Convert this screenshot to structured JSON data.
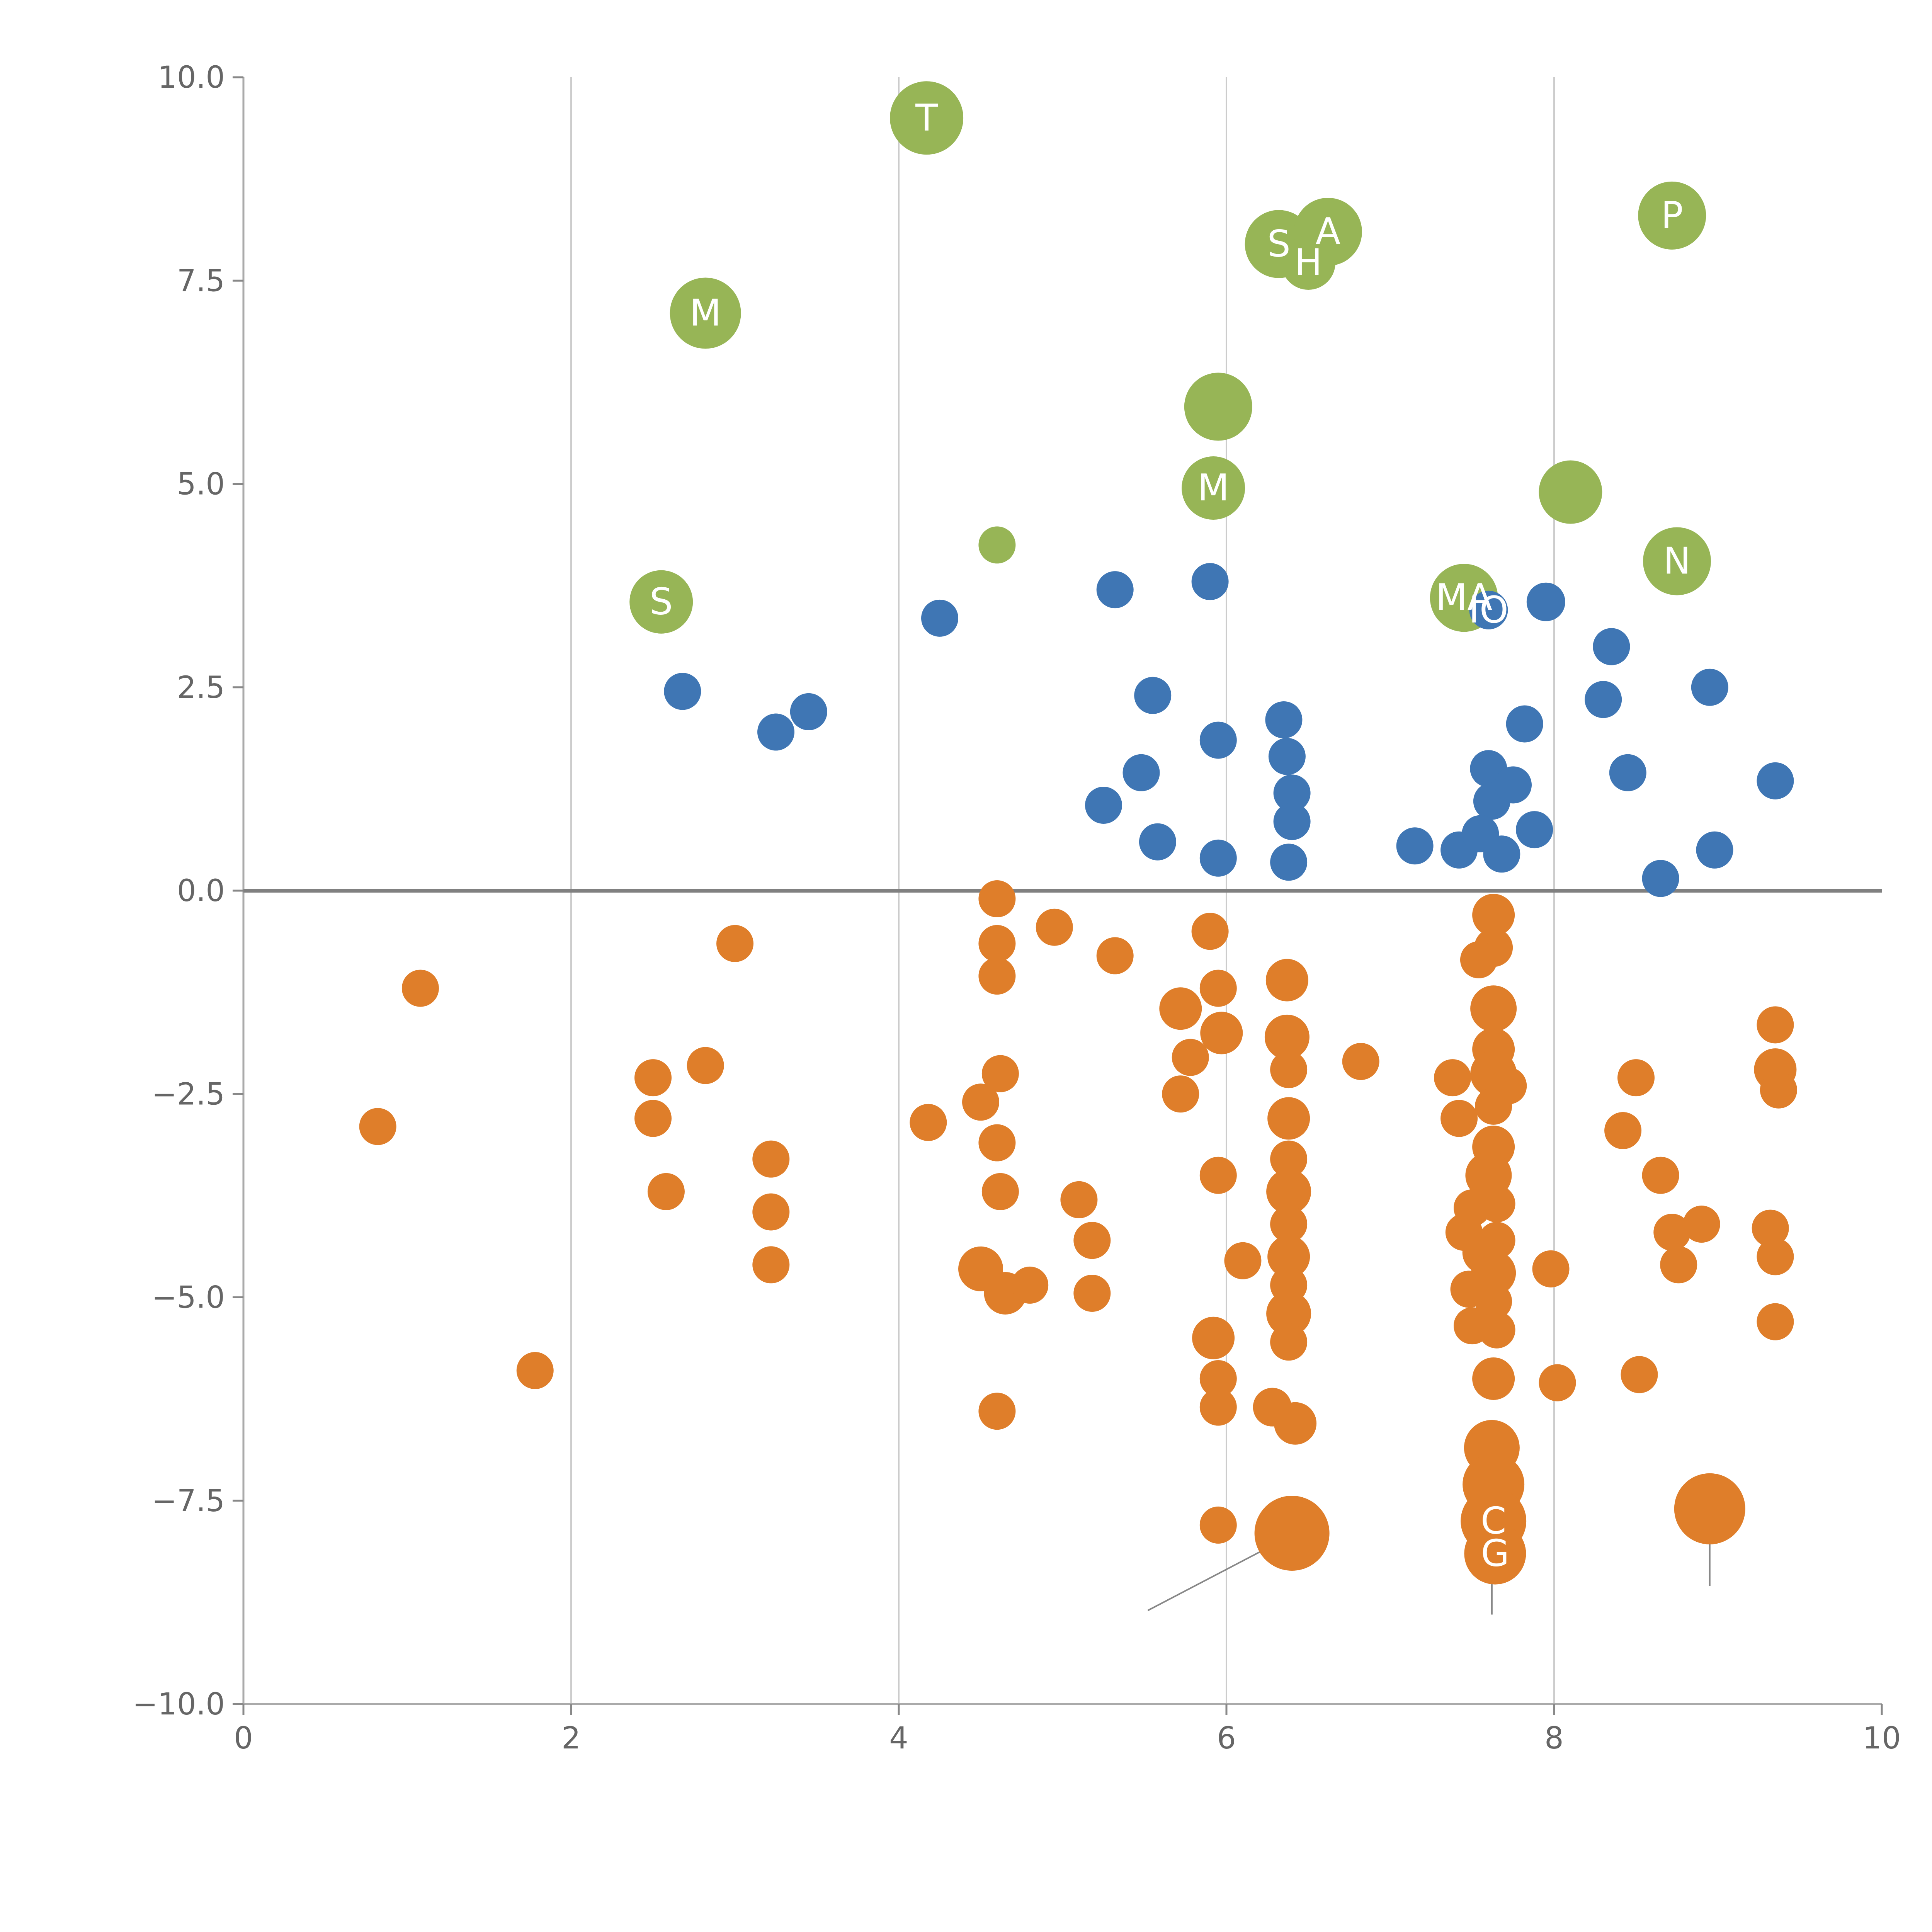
{
  "page": {
    "background": "#ffffff"
  },
  "chart_data": {
    "type": "scatter",
    "title": "",
    "xlabel": "",
    "ylabel": "",
    "xlim": [
      0,
      10
    ],
    "ylim": [
      -10,
      10
    ],
    "grid": {
      "vertical_at": [
        2,
        4,
        6,
        8
      ],
      "color": "#cccccc",
      "horizontal": false
    },
    "zero_line": {
      "y": 0,
      "color": "#808080",
      "width": 10
    },
    "axis": {
      "spine_color": "#aaaaaa",
      "tick_color": "#888888",
      "label_color": "#666666"
    },
    "xticks": [
      {
        "v": 0,
        "label": "0"
      },
      {
        "v": 2,
        "label": "2"
      },
      {
        "v": 4,
        "label": "4"
      },
      {
        "v": 6,
        "label": "6"
      },
      {
        "v": 8,
        "label": "8"
      },
      {
        "v": 10,
        "label": "10"
      }
    ],
    "yticks": [
      {
        "v": 10,
        "label": "10.0"
      },
      {
        "v": 7.5,
        "label": "7.5"
      },
      {
        "v": 5,
        "label": "5.0"
      },
      {
        "v": 2.5,
        "label": "2.5"
      },
      {
        "v": 0,
        "label": "0.0"
      },
      {
        "v": -2.5,
        "label": "−2.5"
      },
      {
        "v": -5,
        "label": "−5.0"
      },
      {
        "v": -7.5,
        "label": "−7.5"
      },
      {
        "v": -10,
        "label": "−10.0"
      }
    ],
    "point_label_color": "#ffffff",
    "series": [
      {
        "name": "green",
        "color": "#97b556",
        "points": [
          [
            4.17,
            9.5,
            95,
            "T"
          ],
          [
            2.82,
            7.1,
            92,
            "M"
          ],
          [
            6.32,
            7.95,
            88,
            "S"
          ],
          [
            6.62,
            8.1,
            88,
            "A"
          ],
          [
            6.5,
            7.72,
            70,
            "H"
          ],
          [
            8.72,
            8.3,
            88,
            "P"
          ],
          [
            5.95,
            5.95,
            88,
            ""
          ],
          [
            5.92,
            4.95,
            82,
            "M"
          ],
          [
            8.1,
            4.9,
            82,
            ""
          ],
          [
            7.45,
            3.6,
            88,
            "MA"
          ],
          [
            8.75,
            4.05,
            88,
            "N"
          ],
          [
            2.55,
            3.55,
            82,
            "S"
          ],
          [
            4.6,
            4.25,
            48,
            ""
          ]
        ]
      },
      {
        "name": "blue",
        "color": "#3f76b4",
        "points": [
          [
            2.68,
            2.45,
            48,
            ""
          ],
          [
            3.25,
            1.95,
            48,
            ""
          ],
          [
            3.45,
            2.2,
            48,
            ""
          ],
          [
            4.25,
            3.35,
            48,
            ""
          ],
          [
            5.32,
            3.7,
            48,
            ""
          ],
          [
            5.55,
            2.4,
            48,
            ""
          ],
          [
            5.9,
            3.8,
            48,
            ""
          ],
          [
            5.95,
            1.85,
            48,
            ""
          ],
          [
            5.25,
            1.05,
            48,
            ""
          ],
          [
            5.48,
            1.45,
            48,
            ""
          ],
          [
            5.58,
            0.6,
            48,
            ""
          ],
          [
            5.95,
            0.4,
            48,
            ""
          ],
          [
            6.35,
            2.1,
            48,
            ""
          ],
          [
            6.37,
            1.65,
            48,
            ""
          ],
          [
            6.4,
            1.2,
            48,
            ""
          ],
          [
            6.4,
            0.85,
            48,
            ""
          ],
          [
            6.38,
            0.35,
            48,
            ""
          ],
          [
            7.15,
            0.55,
            48,
            ""
          ],
          [
            7.42,
            0.5,
            48,
            ""
          ],
          [
            7.6,
            3.45,
            50,
            "IO"
          ],
          [
            7.95,
            3.55,
            50,
            ""
          ],
          [
            7.6,
            1.5,
            48,
            ""
          ],
          [
            7.62,
            1.1,
            48,
            ""
          ],
          [
            7.55,
            0.7,
            48,
            ""
          ],
          [
            7.68,
            0.45,
            48,
            ""
          ],
          [
            7.75,
            1.3,
            48,
            ""
          ],
          [
            7.82,
            2.05,
            48,
            ""
          ],
          [
            7.88,
            0.75,
            48,
            ""
          ],
          [
            8.35,
            3.0,
            48,
            ""
          ],
          [
            8.3,
            2.35,
            48,
            ""
          ],
          [
            8.45,
            1.45,
            48,
            ""
          ],
          [
            8.65,
            0.15,
            48,
            ""
          ],
          [
            8.95,
            2.5,
            48,
            ""
          ],
          [
            8.98,
            0.5,
            48,
            ""
          ],
          [
            9.35,
            1.35,
            48,
            ""
          ]
        ]
      },
      {
        "name": "orange",
        "color": "#df7e2a",
        "points": [
          [
            1.08,
            -1.2,
            48,
            ""
          ],
          [
            0.82,
            -2.9,
            48,
            ""
          ],
          [
            1.78,
            -5.9,
            48,
            ""
          ],
          [
            2.5,
            -2.3,
            48,
            ""
          ],
          [
            2.5,
            -2.8,
            48,
            ""
          ],
          [
            2.58,
            -3.7,
            48,
            ""
          ],
          [
            2.82,
            -2.15,
            48,
            ""
          ],
          [
            3.0,
            -0.65,
            48,
            ""
          ],
          [
            3.22,
            -3.3,
            48,
            ""
          ],
          [
            3.22,
            -3.95,
            48,
            ""
          ],
          [
            3.22,
            -4.6,
            48,
            ""
          ],
          [
            4.18,
            -2.85,
            48,
            ""
          ],
          [
            4.5,
            -2.6,
            48,
            ""
          ],
          [
            4.62,
            -2.25,
            48,
            ""
          ],
          [
            4.6,
            -3.1,
            48,
            ""
          ],
          [
            4.62,
            -3.7,
            48,
            ""
          ],
          [
            4.5,
            -4.65,
            58,
            ""
          ],
          [
            4.65,
            -4.95,
            55,
            ""
          ],
          [
            4.8,
            -4.85,
            48,
            ""
          ],
          [
            4.6,
            -6.4,
            48,
            ""
          ],
          [
            4.6,
            -0.1,
            48,
            ""
          ],
          [
            4.6,
            -0.65,
            48,
            ""
          ],
          [
            4.6,
            -1.05,
            48,
            ""
          ],
          [
            4.95,
            -0.45,
            48,
            ""
          ],
          [
            5.1,
            -3.8,
            48,
            ""
          ],
          [
            5.18,
            -4.3,
            48,
            ""
          ],
          [
            5.18,
            -4.95,
            48,
            ""
          ],
          [
            5.32,
            -0.8,
            48,
            ""
          ],
          [
            5.72,
            -1.45,
            55,
            ""
          ],
          [
            5.78,
            -2.05,
            48,
            ""
          ],
          [
            5.72,
            -2.5,
            48,
            ""
          ],
          [
            5.9,
            -0.5,
            48,
            ""
          ],
          [
            5.95,
            -1.2,
            48,
            ""
          ],
          [
            5.97,
            -1.75,
            55,
            ""
          ],
          [
            5.95,
            -3.5,
            48,
            ""
          ],
          [
            6.1,
            -4.55,
            48,
            ""
          ],
          [
            5.92,
            -5.5,
            55,
            ""
          ],
          [
            5.95,
            -6.0,
            48,
            ""
          ],
          [
            5.95,
            -6.35,
            48,
            ""
          ],
          [
            5.95,
            -7.8,
            48,
            ""
          ],
          [
            6.37,
            -1.1,
            55,
            ""
          ],
          [
            6.37,
            -1.8,
            58,
            ""
          ],
          [
            6.38,
            -2.2,
            48,
            ""
          ],
          [
            6.38,
            -2.8,
            55,
            ""
          ],
          [
            6.38,
            -3.3,
            48,
            ""
          ],
          [
            6.38,
            -3.7,
            58,
            ""
          ],
          [
            6.38,
            -4.1,
            48,
            ""
          ],
          [
            6.38,
            -4.5,
            55,
            ""
          ],
          [
            6.38,
            -4.85,
            48,
            ""
          ],
          [
            6.38,
            -5.2,
            58,
            ""
          ],
          [
            6.38,
            -5.55,
            48,
            ""
          ],
          [
            6.28,
            -6.35,
            50,
            ""
          ],
          [
            6.42,
            -6.55,
            55,
            ""
          ],
          [
            6.4,
            -7.9,
            97,
            ""
          ],
          [
            6.82,
            -2.1,
            48,
            ""
          ],
          [
            7.63,
            -0.3,
            55,
            ""
          ],
          [
            7.63,
            -0.7,
            50,
            ""
          ],
          [
            7.54,
            -0.85,
            48,
            ""
          ],
          [
            7.63,
            -1.45,
            60,
            ""
          ],
          [
            7.63,
            -1.95,
            55,
            ""
          ],
          [
            7.38,
            -2.3,
            48,
            ""
          ],
          [
            7.42,
            -2.8,
            48,
            ""
          ],
          [
            7.63,
            -2.25,
            60,
            ""
          ],
          [
            7.72,
            -2.4,
            48,
            ""
          ],
          [
            7.63,
            -2.65,
            48,
            ""
          ],
          [
            7.63,
            -3.15,
            55,
            ""
          ],
          [
            7.6,
            -3.5,
            60,
            ""
          ],
          [
            7.5,
            -3.9,
            48,
            ""
          ],
          [
            7.65,
            -3.85,
            48,
            ""
          ],
          [
            7.45,
            -4.2,
            48,
            ""
          ],
          [
            7.57,
            -4.45,
            55,
            ""
          ],
          [
            7.65,
            -4.3,
            48,
            ""
          ],
          [
            7.63,
            -4.7,
            58,
            ""
          ],
          [
            7.48,
            -4.9,
            48,
            ""
          ],
          [
            7.63,
            -5.05,
            48,
            ""
          ],
          [
            7.5,
            -5.35,
            48,
            ""
          ],
          [
            7.65,
            -5.4,
            48,
            ""
          ],
          [
            7.63,
            -6.0,
            55,
            ""
          ],
          [
            7.98,
            -4.65,
            48,
            ""
          ],
          [
            8.02,
            -6.05,
            48,
            ""
          ],
          [
            7.62,
            -6.85,
            72,
            ""
          ],
          [
            7.63,
            -7.3,
            80,
            ""
          ],
          [
            7.63,
            -7.75,
            85,
            "C"
          ],
          [
            7.64,
            -8.15,
            80,
            "G"
          ],
          [
            8.5,
            -2.3,
            48,
            ""
          ],
          [
            8.42,
            -2.95,
            48,
            ""
          ],
          [
            8.65,
            -3.5,
            48,
            ""
          ],
          [
            8.72,
            -4.2,
            48,
            ""
          ],
          [
            8.76,
            -4.6,
            48,
            ""
          ],
          [
            8.9,
            -4.1,
            48,
            ""
          ],
          [
            8.52,
            -5.95,
            48,
            ""
          ],
          [
            8.95,
            -7.6,
            92,
            ""
          ],
          [
            9.35,
            -1.65,
            48,
            ""
          ],
          [
            9.35,
            -2.2,
            55,
            ""
          ],
          [
            9.37,
            -2.45,
            48,
            ""
          ],
          [
            9.32,
            -4.15,
            48,
            ""
          ],
          [
            9.35,
            -4.5,
            48,
            ""
          ],
          [
            9.35,
            -5.3,
            48,
            ""
          ]
        ]
      }
    ],
    "annotations": {
      "leader_line_color": "#888888",
      "leader_lines": [
        {
          "x1": 6.28,
          "y1": -8.05,
          "x2": 5.52,
          "y2": -8.85
        },
        {
          "x1": 7.62,
          "y1": -6.95,
          "x2": 7.62,
          "y2": -8.9
        },
        {
          "x1": 8.95,
          "y1": -7.65,
          "x2": 8.95,
          "y2": -8.55
        }
      ]
    }
  }
}
